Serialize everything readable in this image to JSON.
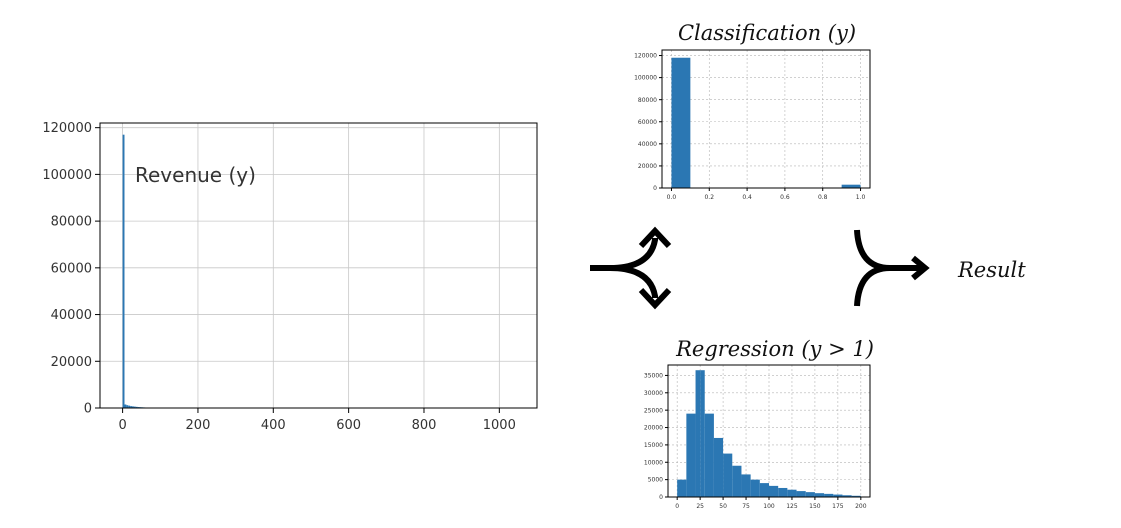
{
  "labels": {
    "classification_title": "Classification (y)",
    "regression_title": "Regression (y > 1)",
    "result": "Result"
  },
  "icons": [
    "split-arrow-icon",
    "merge-arrow-icon"
  ],
  "colors": {
    "bar": "#2b77b3"
  },
  "chart_data": [
    {
      "id": "revenue",
      "type": "bar",
      "title": "",
      "annotation": "Revenue (y)",
      "x": [
        0,
        5,
        10,
        15,
        20,
        25,
        30,
        35,
        40,
        45,
        50,
        55,
        60,
        65,
        70
      ],
      "bin_width": 5,
      "values": [
        117000,
        1500,
        1200,
        1000,
        800,
        700,
        600,
        500,
        400,
        350,
        300,
        250,
        200,
        150,
        100
      ],
      "xlim": [
        -60,
        1100
      ],
      "ylim": [
        0,
        122000
      ],
      "xticks": [
        0,
        200,
        400,
        600,
        800,
        1000
      ],
      "yticks": [
        0,
        20000,
        40000,
        60000,
        80000,
        100000,
        120000
      ],
      "grid": true
    },
    {
      "id": "classification",
      "type": "bar",
      "title": "Classification (y)",
      "x": [
        0.0,
        0.9
      ],
      "bin_width": 0.1,
      "values": [
        118000,
        3000
      ],
      "xlim": [
        -0.05,
        1.05
      ],
      "ylim": [
        0,
        125000
      ],
      "xticks": [
        0.0,
        0.2,
        0.4,
        0.6,
        0.8,
        1.0
      ],
      "xtick_labels": [
        "0.0",
        "0.2",
        "0.4",
        "0.6",
        "0.8",
        "1.0"
      ],
      "yticks": [
        0,
        20000,
        40000,
        60000,
        80000,
        100000,
        120000
      ],
      "grid": true
    },
    {
      "id": "regression",
      "type": "bar",
      "title": "Regression (y > 1)",
      "x": [
        0,
        10,
        20,
        25,
        30,
        40,
        50,
        60,
        70,
        80,
        90,
        100,
        110,
        120,
        130,
        140,
        150,
        160,
        170,
        180,
        190
      ],
      "bin_widths": [
        10,
        10,
        5,
        5,
        10,
        10,
        10,
        10,
        10,
        10,
        10,
        10,
        10,
        10,
        10,
        10,
        10,
        10,
        10,
        10,
        10
      ],
      "values": [
        5000,
        24000,
        36500,
        36500,
        24000,
        17000,
        12500,
        9000,
        6500,
        5000,
        4000,
        3200,
        2600,
        2100,
        1700,
        1400,
        1100,
        900,
        700,
        500,
        350
      ],
      "xlim": [
        -10,
        210
      ],
      "ylim": [
        0,
        38000
      ],
      "xticks": [
        0,
        25,
        50,
        75,
        100,
        125,
        150,
        175,
        200
      ],
      "yticks": [
        0,
        5000,
        10000,
        15000,
        20000,
        25000,
        30000,
        35000
      ],
      "grid": true
    }
  ]
}
